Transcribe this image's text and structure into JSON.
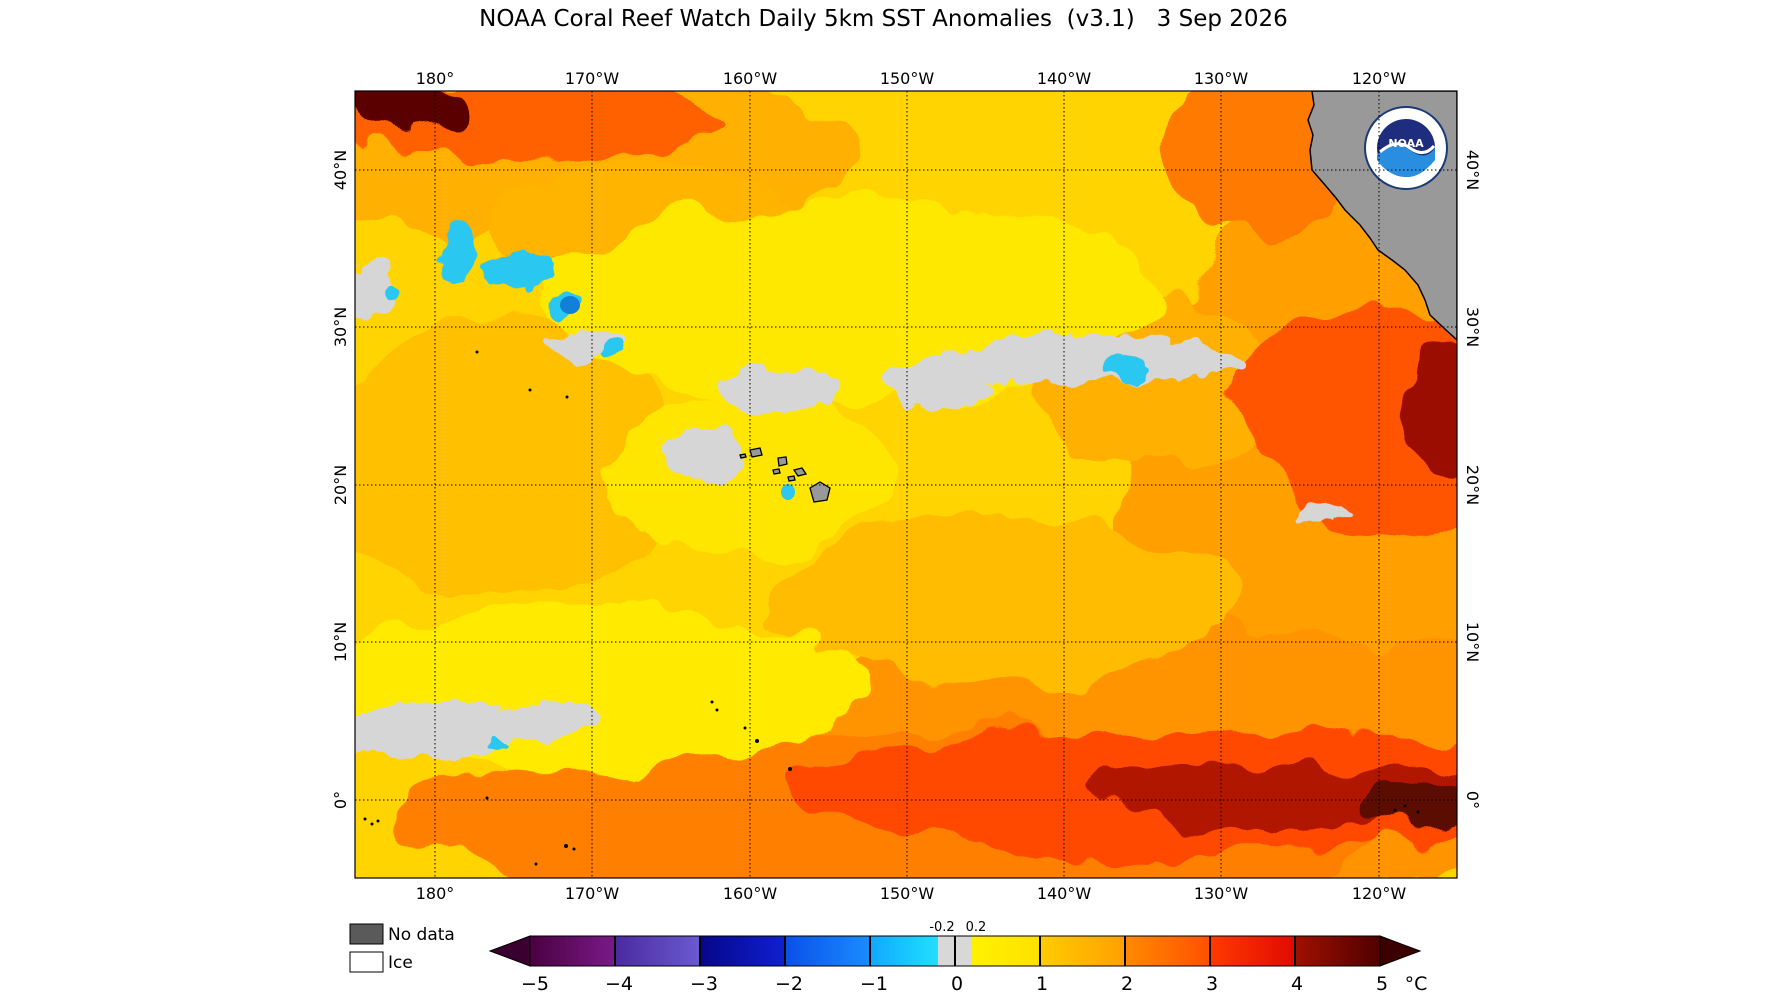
{
  "title": "NOAA Coral Reef Watch Daily 5km SST Anomalies  (v3.1)   3 Sep 2026",
  "map": {
    "lon_labels": [
      "180°",
      "170°W",
      "160°W",
      "150°W",
      "140°W",
      "130°W",
      "120°W"
    ],
    "lat_labels": [
      "40°N",
      "30°N",
      "20°N",
      "10°N",
      "0°"
    ],
    "lon_range": [
      "175°E",
      "115°W"
    ],
    "lat_range": [
      "5°S",
      "45°N"
    ],
    "logo_text": "NOAA",
    "logo_ring_text": "NATIONAL OCEANIC AND ATMOSPHERIC ADMINISTRATION · U.S. DEPARTMENT OF COMMERCE ·"
  },
  "legend": {
    "no_data": "No data",
    "ice": "Ice",
    "no_data_color": "#5a5a5a",
    "ice_color": "#ffffff"
  },
  "colorbar": {
    "ticks": [
      "−5",
      "−4",
      "−3",
      "−2",
      "−1",
      "0",
      "1",
      "2",
      "3",
      "4",
      "5"
    ],
    "small_ticks": [
      "-0.2",
      "0.2"
    ],
    "unit": "°C",
    "colors": {
      "m5": "#3a0030",
      "m4": "#5a1a8c",
      "m3": "#0a0aa8",
      "m2": "#1f5cff",
      "m1": "#19c8ff",
      "zero": "#d3d3d3",
      "p1": "#ffe600",
      "p2": "#ffa800",
      "p3": "#ff5a00",
      "p4": "#c81400",
      "p5": "#3c0000"
    }
  }
}
